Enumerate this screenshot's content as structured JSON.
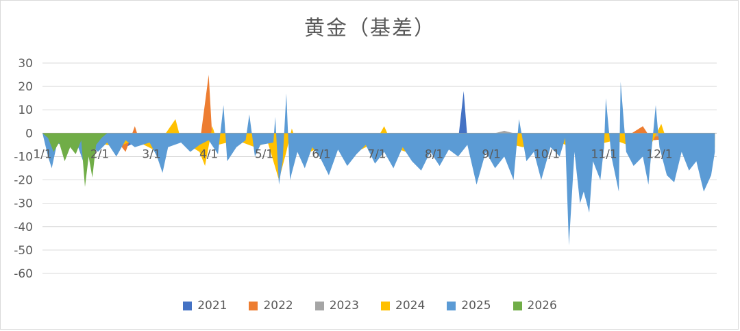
{
  "chart_data": {
    "type": "area",
    "title": "黄金（基差）",
    "xlabel": "",
    "ylabel": "",
    "ylim": [
      -60,
      30
    ],
    "yticks": [
      30,
      20,
      10,
      0,
      -10,
      -20,
      -30,
      -40,
      -50,
      -60
    ],
    "xaxis_days": 365,
    "xtick_labels": [
      {
        "label": "1/1",
        "day": 0
      },
      {
        "label": "2/1",
        "day": 31
      },
      {
        "label": "3/1",
        "day": 59
      },
      {
        "label": "4/1",
        "day": 90
      },
      {
        "label": "5/1",
        "day": 120
      },
      {
        "label": "6/1",
        "day": 151
      },
      {
        "label": "7/1",
        "day": 181
      },
      {
        "label": "8/1",
        "day": 212
      },
      {
        "label": "9/1",
        "day": 243
      },
      {
        "label": "10/1",
        "day": 273
      },
      {
        "label": "11/1",
        "day": 304
      },
      {
        "label": "12/1",
        "day": 334
      }
    ],
    "grid": true,
    "legend_position": "bottom",
    "series": [
      {
        "name": "2021",
        "color": "#4472C4",
        "points": [
          [
            0,
            0
          ],
          [
            5,
            -3
          ],
          [
            10,
            -5
          ],
          [
            15,
            -2
          ],
          [
            20,
            -4
          ],
          [
            30,
            -2
          ],
          [
            35,
            -3
          ],
          [
            40,
            -2
          ],
          [
            45,
            -6
          ],
          [
            50,
            -4
          ],
          [
            55,
            -2
          ],
          [
            60,
            -3
          ],
          [
            70,
            -2
          ],
          [
            80,
            -3
          ],
          [
            88,
            -2
          ],
          [
            90,
            22
          ],
          [
            91,
            -2
          ],
          [
            95,
            -3
          ],
          [
            105,
            -2
          ],
          [
            115,
            -3
          ],
          [
            125,
            -2
          ],
          [
            140,
            -3
          ],
          [
            155,
            -2
          ],
          [
            170,
            -3
          ],
          [
            185,
            -2
          ],
          [
            200,
            -3
          ],
          [
            212,
            -4
          ],
          [
            220,
            -5
          ],
          [
            225,
            -3
          ],
          [
            228,
            18
          ],
          [
            230,
            -2
          ],
          [
            240,
            -3
          ],
          [
            250,
            -2
          ],
          [
            260,
            -2
          ],
          [
            270,
            -3
          ],
          [
            285,
            -2
          ],
          [
            300,
            -3
          ],
          [
            315,
            -2
          ],
          [
            330,
            -3
          ],
          [
            345,
            -2
          ],
          [
            364,
            -3
          ]
        ]
      },
      {
        "name": "2022",
        "color": "#ED7D31",
        "points": [
          [
            0,
            0
          ],
          [
            8,
            -2
          ],
          [
            15,
            -4
          ],
          [
            25,
            -3
          ],
          [
            35,
            -5
          ],
          [
            40,
            -3
          ],
          [
            45,
            -8
          ],
          [
            50,
            3
          ],
          [
            52,
            -2
          ],
          [
            60,
            -4
          ],
          [
            70,
            -3
          ],
          [
            85,
            -5
          ],
          [
            90,
            25
          ],
          [
            92,
            -3
          ],
          [
            100,
            -2
          ],
          [
            115,
            -4
          ],
          [
            130,
            -3
          ],
          [
            150,
            -2
          ],
          [
            170,
            -4
          ],
          [
            190,
            -3
          ],
          [
            205,
            -5
          ],
          [
            220,
            -4
          ],
          [
            240,
            -3
          ],
          [
            255,
            -2
          ],
          [
            270,
            -3
          ],
          [
            285,
            -4
          ],
          [
            300,
            -3
          ],
          [
            315,
            -2
          ],
          [
            325,
            3
          ],
          [
            330,
            -3
          ],
          [
            345,
            -2
          ],
          [
            364,
            -2
          ]
        ]
      },
      {
        "name": "2023",
        "color": "#A5A5A5",
        "points": [
          [
            0,
            0
          ],
          [
            10,
            -1
          ],
          [
            25,
            -2
          ],
          [
            40,
            -1
          ],
          [
            60,
            -2
          ],
          [
            80,
            -1
          ],
          [
            100,
            -2
          ],
          [
            120,
            -1
          ],
          [
            140,
            -2
          ],
          [
            160,
            -1
          ],
          [
            180,
            -2
          ],
          [
            200,
            -1
          ],
          [
            220,
            -2
          ],
          [
            240,
            -1
          ],
          [
            250,
            1
          ],
          [
            260,
            -1
          ],
          [
            280,
            -2
          ],
          [
            300,
            -1
          ],
          [
            320,
            -2
          ],
          [
            340,
            -1
          ],
          [
            364,
            -1
          ]
        ]
      },
      {
        "name": "2024",
        "color": "#FFC000",
        "points": [
          [
            0,
            0
          ],
          [
            10,
            -3
          ],
          [
            20,
            -5
          ],
          [
            30,
            -4
          ],
          [
            40,
            -6
          ],
          [
            50,
            -3
          ],
          [
            60,
            -7
          ],
          [
            65,
            -2
          ],
          [
            72,
            6
          ],
          [
            75,
            -3
          ],
          [
            85,
            -8
          ],
          [
            88,
            -14
          ],
          [
            92,
            3
          ],
          [
            95,
            -5
          ],
          [
            105,
            -3
          ],
          [
            115,
            -6
          ],
          [
            122,
            -4
          ],
          [
            128,
            -20
          ],
          [
            132,
            -8
          ],
          [
            135,
            2
          ],
          [
            140,
            -10
          ],
          [
            150,
            -6
          ],
          [
            155,
            -12
          ],
          [
            160,
            -5
          ],
          [
            170,
            -8
          ],
          [
            180,
            -4
          ],
          [
            185,
            3
          ],
          [
            190,
            -6
          ],
          [
            200,
            -9
          ],
          [
            210,
            -5
          ],
          [
            215,
            -11
          ],
          [
            220,
            -6
          ],
          [
            230,
            -3
          ],
          [
            240,
            -5
          ],
          [
            250,
            -4
          ],
          [
            260,
            -6
          ],
          [
            270,
            -3
          ],
          [
            275,
            -2
          ],
          [
            280,
            -4
          ],
          [
            290,
            -7
          ],
          [
            300,
            -5
          ],
          [
            310,
            -3
          ],
          [
            320,
            -6
          ],
          [
            330,
            -4
          ],
          [
            335,
            4
          ],
          [
            340,
            -8
          ],
          [
            350,
            -5
          ],
          [
            356,
            -12
          ],
          [
            364,
            -6
          ]
        ]
      },
      {
        "name": "2025",
        "color": "#5B9BD5",
        "points": [
          [
            0,
            0
          ],
          [
            3,
            -10
          ],
          [
            5,
            -15
          ],
          [
            8,
            -4
          ],
          [
            12,
            -6
          ],
          [
            18,
            -3
          ],
          [
            22,
            -12
          ],
          [
            26,
            -5
          ],
          [
            30,
            -8
          ],
          [
            35,
            -4
          ],
          [
            40,
            -10
          ],
          [
            45,
            -3
          ],
          [
            50,
            -6
          ],
          [
            58,
            -4
          ],
          [
            62,
            -10
          ],
          [
            65,
            -17
          ],
          [
            68,
            -6
          ],
          [
            75,
            -4
          ],
          [
            80,
            -8
          ],
          [
            85,
            -5
          ],
          [
            90,
            -3
          ],
          [
            95,
            -9
          ],
          [
            98,
            12
          ],
          [
            100,
            -12
          ],
          [
            105,
            -6
          ],
          [
            110,
            -3
          ],
          [
            112,
            8
          ],
          [
            115,
            -10
          ],
          [
            118,
            -5
          ],
          [
            125,
            -4
          ],
          [
            126,
            7
          ],
          [
            128,
            -22
          ],
          [
            130,
            -12
          ],
          [
            132,
            17
          ],
          [
            134,
            -20
          ],
          [
            138,
            -8
          ],
          [
            142,
            -15
          ],
          [
            146,
            -6
          ],
          [
            150,
            -10
          ],
          [
            155,
            -18
          ],
          [
            160,
            -7
          ],
          [
            165,
            -14
          ],
          [
            170,
            -9
          ],
          [
            175,
            -5
          ],
          [
            180,
            -13
          ],
          [
            185,
            -8
          ],
          [
            190,
            -15
          ],
          [
            195,
            -6
          ],
          [
            200,
            -12
          ],
          [
            205,
            -16
          ],
          [
            210,
            -8
          ],
          [
            215,
            -14
          ],
          [
            220,
            -7
          ],
          [
            225,
            -10
          ],
          [
            230,
            -5
          ],
          [
            235,
            -22
          ],
          [
            240,
            -8
          ],
          [
            245,
            -15
          ],
          [
            250,
            -10
          ],
          [
            255,
            -20
          ],
          [
            258,
            6
          ],
          [
            262,
            -12
          ],
          [
            266,
            -8
          ],
          [
            270,
            -20
          ],
          [
            275,
            -6
          ],
          [
            280,
            -10
          ],
          [
            283,
            -2
          ],
          [
            285,
            -48
          ],
          [
            288,
            -8
          ],
          [
            291,
            -30
          ],
          [
            293,
            -25
          ],
          [
            296,
            -34
          ],
          [
            298,
            -12
          ],
          [
            302,
            -20
          ],
          [
            304,
            -6
          ],
          [
            305,
            15
          ],
          [
            308,
            -10
          ],
          [
            312,
            -25
          ],
          [
            313,
            22
          ],
          [
            316,
            -8
          ],
          [
            320,
            -14
          ],
          [
            325,
            -10
          ],
          [
            328,
            -22
          ],
          [
            332,
            12
          ],
          [
            334,
            -6
          ],
          [
            338,
            -18
          ],
          [
            342,
            -21
          ],
          [
            346,
            -8
          ],
          [
            350,
            -16
          ],
          [
            354,
            -12
          ],
          [
            358,
            -25
          ],
          [
            362,
            -18
          ],
          [
            364,
            -8
          ]
        ]
      },
      {
        "name": "2026",
        "color": "#70AD47",
        "points": [
          [
            0,
            0
          ],
          [
            3,
            -2
          ],
          [
            6,
            -8
          ],
          [
            9,
            -4
          ],
          [
            12,
            -12
          ],
          [
            15,
            -6
          ],
          [
            18,
            -9
          ],
          [
            21,
            -3
          ],
          [
            23,
            -23
          ],
          [
            25,
            -10
          ],
          [
            27,
            -19
          ],
          [
            29,
            -5
          ],
          [
            32,
            -2
          ],
          [
            35,
            0
          ]
        ]
      }
    ]
  }
}
